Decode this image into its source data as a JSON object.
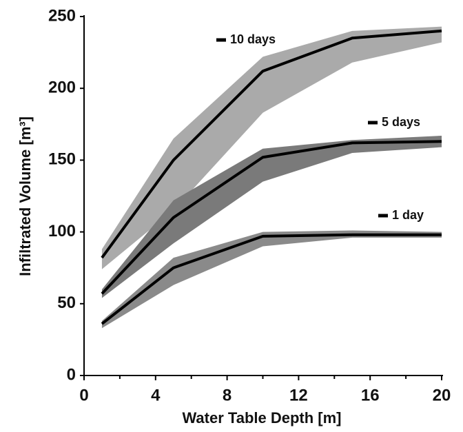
{
  "chart_data": {
    "type": "band-line",
    "x_label": "Water Table Depth [m]",
    "y_label": "Infiltrated Volume [m³]",
    "x": [
      1,
      5,
      10,
      15,
      20
    ],
    "series": [
      {
        "name": "10 days",
        "color": "#000000",
        "band_color": "#aaaaaa",
        "values": [
          82,
          150,
          212,
          235,
          240
        ],
        "upper": [
          88,
          165,
          222,
          240,
          243
        ],
        "lower": [
          74,
          115,
          183,
          218,
          232
        ]
      },
      {
        "name": "5 days",
        "color": "#000000",
        "band_color": "#7a7a7a",
        "values": [
          57,
          110,
          152,
          162,
          163
        ],
        "upper": [
          60,
          122,
          158,
          164,
          167
        ],
        "lower": [
          54,
          92,
          135,
          155,
          159
        ]
      },
      {
        "name": "1 day",
        "color": "#000000",
        "band_color": "#8a8a8a",
        "values": [
          36,
          75,
          97,
          98,
          98
        ],
        "upper": [
          38,
          82,
          100,
          101,
          100
        ],
        "lower": [
          33,
          63,
          90,
          96,
          96
        ]
      }
    ],
    "xlim": [
      0,
      20
    ],
    "xticks": [
      0,
      4,
      8,
      12,
      16,
      20
    ],
    "ylim": [
      0,
      250
    ],
    "yticks": [
      0,
      50,
      100,
      150,
      200,
      250
    ]
  }
}
